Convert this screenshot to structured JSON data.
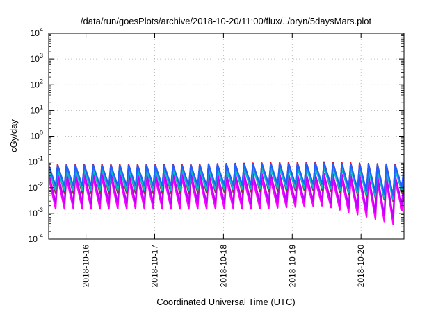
{
  "chart_data": {
    "type": "line",
    "title": "/data/run/goesPlots/archive/2018-10-20/11:00/flux/../bryn/5daysMars.plot",
    "xlabel": "Coordinated Universal Time (UTC)",
    "ylabel": "cGy/day",
    "yscale": "log",
    "ylim": [
      0.0001,
      10000
    ],
    "xlim": [
      "2018-10-15 11:00",
      "2018-10-20 15:00"
    ],
    "grid": true,
    "legend": "none",
    "y_ticks": [
      {
        "value": 0.0001,
        "base": "10",
        "exp": "-4"
      },
      {
        "value": 0.001,
        "base": "10",
        "exp": "-3"
      },
      {
        "value": 0.01,
        "base": "10",
        "exp": "-2"
      },
      {
        "value": 0.1,
        "base": "10",
        "exp": "-1"
      },
      {
        "value": 1,
        "base": "10",
        "exp": "0"
      },
      {
        "value": 10,
        "base": "10",
        "exp": "1"
      },
      {
        "value": 100,
        "base": "10",
        "exp": "2"
      },
      {
        "value": 1000,
        "base": "10",
        "exp": "3"
      },
      {
        "value": 10000,
        "base": "10",
        "exp": "4"
      }
    ],
    "x_ticks": [
      {
        "value": "2018-10-16 00:00",
        "label": "2018-10-16"
      },
      {
        "value": "2018-10-17 00:00",
        "label": "2018-10-17"
      },
      {
        "value": "2018-10-18 00:00",
        "label": "2018-10-18"
      },
      {
        "value": "2018-10-19 00:00",
        "label": "2018-10-19"
      },
      {
        "value": "2018-10-20 00:00",
        "label": "2018-10-20"
      }
    ],
    "series": [
      {
        "color": "#ff00ff",
        "pattern": "sawtooth, ~3.1 h period",
        "x": [
          "2018-10-15 11:00",
          "2018-10-16 11:00",
          "2018-10-17 11:00",
          "2018-10-18 11:00",
          "2018-10-19 11:00",
          "2018-10-20 11:00",
          "2018-10-20 13:00",
          "2018-10-20 15:00"
        ],
        "peak_y": [
          0.025,
          0.025,
          0.025,
          0.02,
          0.02,
          0.02,
          0.02,
          0.025
        ],
        "trough_y": [
          0.0015,
          0.0015,
          0.0015,
          0.0015,
          0.002,
          0.0004,
          0.00025,
          0.003
        ]
      },
      {
        "color": "#c000ff",
        "pattern": "sawtooth, ~3.1 h period",
        "x": [
          "2018-10-15 11:00",
          "2018-10-16 11:00",
          "2018-10-17 11:00",
          "2018-10-18 11:00",
          "2018-10-19 11:00",
          "2018-10-20 11:00",
          "2018-10-20 13:00",
          "2018-10-20 15:00"
        ],
        "peak_y": [
          0.04,
          0.04,
          0.04,
          0.035,
          0.035,
          0.03,
          0.03,
          0.04
        ],
        "trough_y": [
          0.0025,
          0.0025,
          0.0025,
          0.0025,
          0.003,
          0.0007,
          0.00045,
          0.005
        ]
      },
      {
        "color": "#8b3a3a",
        "pattern": "sawtooth, ~3.1 h period",
        "x": [
          "2018-10-15 11:00",
          "2018-10-16 11:00",
          "2018-10-17 11:00",
          "2018-10-18 11:00",
          "2018-10-19 11:00",
          "2018-10-20 11:00",
          "2018-10-20 13:00",
          "2018-10-20 15:00"
        ],
        "peak_y": [
          0.07,
          0.07,
          0.07,
          0.08,
          0.08,
          0.07,
          0.07,
          0.07
        ],
        "trough_y": [
          0.006,
          0.006,
          0.006,
          0.007,
          0.008,
          0.003,
          0.0025,
          0.01
        ]
      },
      {
        "color": "#ff0000",
        "pattern": "sawtooth, ~3.1 h period",
        "x": [
          "2018-10-15 11:00",
          "2018-10-16 11:00",
          "2018-10-17 11:00",
          "2018-10-18 11:00",
          "2018-10-19 11:00",
          "2018-10-20 11:00",
          "2018-10-20 13:00",
          "2018-10-20 15:00"
        ],
        "peak_y": [
          0.08,
          0.08,
          0.08,
          0.09,
          0.1,
          0.08,
          0.08,
          0.08
        ],
        "trough_y": [
          0.01,
          0.01,
          0.01,
          0.011,
          0.012,
          0.0045,
          0.0035,
          0.015
        ]
      },
      {
        "color": "#00c0c0",
        "pattern": "sawtooth, ~3.1 h period",
        "x": [
          "2018-10-15 11:00",
          "2018-10-16 11:00",
          "2018-10-17 11:00",
          "2018-10-18 11:00",
          "2018-10-19 11:00",
          "2018-10-20 11:00",
          "2018-10-20 13:00",
          "2018-10-20 15:00"
        ],
        "peak_y": [
          0.05,
          0.05,
          0.05,
          0.055,
          0.06,
          0.05,
          0.05,
          0.05
        ],
        "trough_y": [
          0.008,
          0.008,
          0.008,
          0.009,
          0.01,
          0.0035,
          0.003,
          0.012
        ]
      },
      {
        "color": "#2060ff",
        "pattern": "sawtooth, ~3.1 h period",
        "x": [
          "2018-10-15 11:00",
          "2018-10-16 11:00",
          "2018-10-17 11:00",
          "2018-10-18 11:00",
          "2018-10-19 11:00",
          "2018-10-20 11:00",
          "2018-10-20 13:00",
          "2018-10-20 15:00"
        ],
        "peak_y": [
          0.075,
          0.075,
          0.075,
          0.085,
          0.09,
          0.075,
          0.075,
          0.075
        ],
        "trough_y": [
          0.012,
          0.012,
          0.012,
          0.013,
          0.014,
          0.005,
          0.004,
          0.018
        ]
      }
    ]
  }
}
